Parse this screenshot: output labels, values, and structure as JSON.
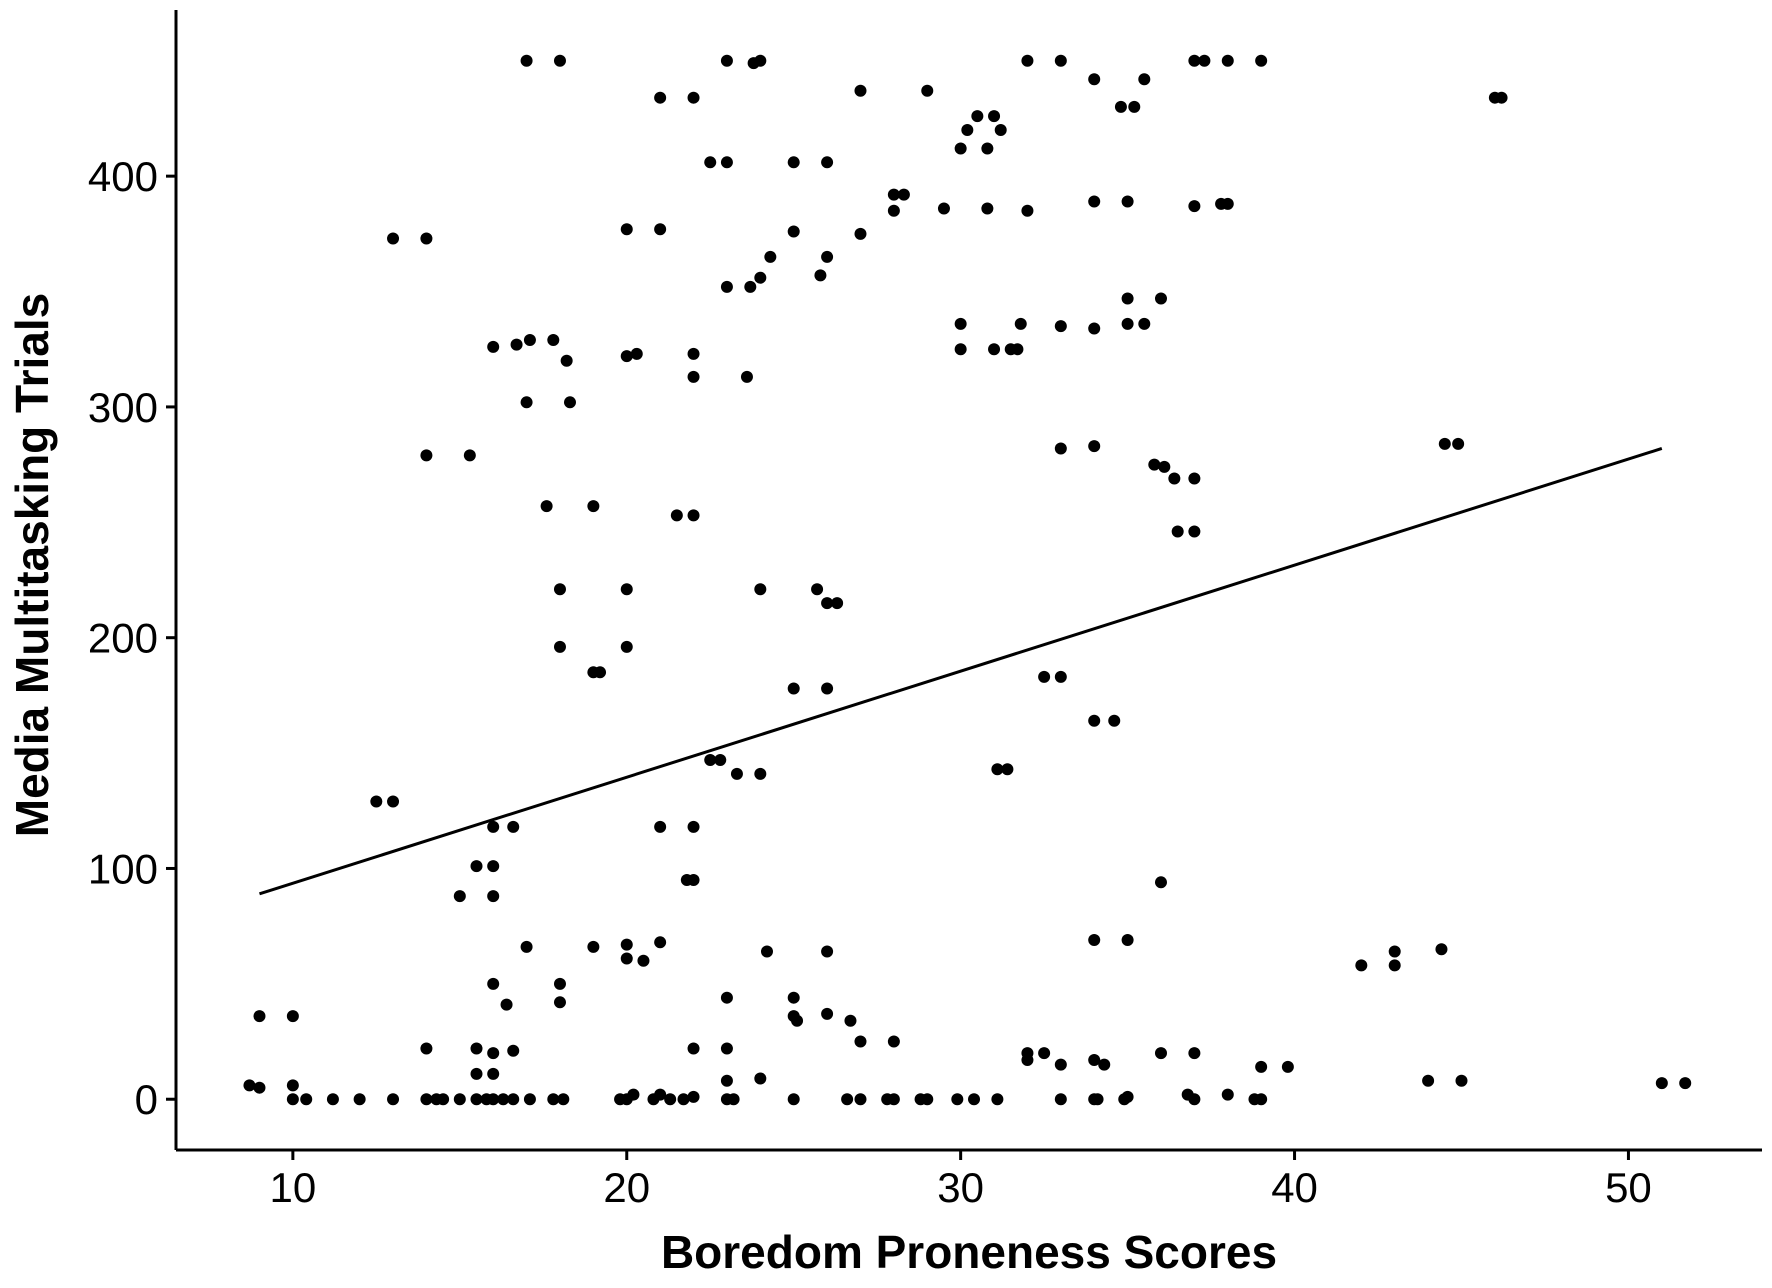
{
  "chart_data": {
    "type": "scatter",
    "title": "",
    "xlabel": "Boredom Proneness Scores",
    "ylabel": "Media Multitasking Trials",
    "xlim": [
      6.5,
      54
    ],
    "ylim": [
      -22,
      472
    ],
    "xticks": [
      10,
      20,
      30,
      40,
      50
    ],
    "yticks": [
      0,
      100,
      200,
      300,
      400
    ],
    "grid": false,
    "legend": "none",
    "trend_line": {
      "x": [
        9,
        51
      ],
      "y": [
        89,
        282
      ]
    },
    "points": [
      [
        17,
        450
      ],
      [
        18,
        450
      ],
      [
        23,
        450
      ],
      [
        24,
        450
      ],
      [
        23.8,
        449
      ],
      [
        32,
        450
      ],
      [
        33,
        450
      ],
      [
        37,
        450
      ],
      [
        37.3,
        450
      ],
      [
        38,
        450
      ],
      [
        39,
        450
      ],
      [
        21,
        434
      ],
      [
        22,
        434
      ],
      [
        27,
        437
      ],
      [
        29,
        437
      ],
      [
        46,
        434
      ],
      [
        46.2,
        434
      ],
      [
        34,
        442
      ],
      [
        35.5,
        442
      ],
      [
        34.8,
        430
      ],
      [
        35.2,
        430
      ],
      [
        30.2,
        420
      ],
      [
        30.5,
        426
      ],
      [
        31,
        426
      ],
      [
        30,
        412
      ],
      [
        30.8,
        412
      ],
      [
        31.2,
        420
      ],
      [
        22.5,
        406
      ],
      [
        23,
        406
      ],
      [
        25,
        406
      ],
      [
        26,
        406
      ],
      [
        28,
        392
      ],
      [
        28.3,
        392
      ],
      [
        28,
        385
      ],
      [
        29.5,
        386
      ],
      [
        30.8,
        386
      ],
      [
        32,
        385
      ],
      [
        34,
        389
      ],
      [
        35,
        389
      ],
      [
        37,
        387
      ],
      [
        37.8,
        388
      ],
      [
        38,
        388
      ],
      [
        13,
        373
      ],
      [
        14,
        373
      ],
      [
        20,
        377
      ],
      [
        21,
        377
      ],
      [
        25,
        376
      ],
      [
        27,
        375
      ],
      [
        26,
        365
      ],
      [
        24.3,
        365
      ],
      [
        23,
        352
      ],
      [
        23.7,
        352
      ],
      [
        24,
        356
      ],
      [
        25.8,
        357
      ],
      [
        35,
        347
      ],
      [
        36,
        347
      ],
      [
        30,
        336
      ],
      [
        31.8,
        336
      ],
      [
        33,
        335
      ],
      [
        34,
        334
      ],
      [
        35,
        336
      ],
      [
        35.5,
        336
      ],
      [
        16,
        326
      ],
      [
        16.7,
        327
      ],
      [
        17.1,
        329
      ],
      [
        17.8,
        329
      ],
      [
        18.2,
        320
      ],
      [
        20,
        322
      ],
      [
        20.3,
        323
      ],
      [
        22,
        323
      ],
      [
        22,
        313
      ],
      [
        23.6,
        313
      ],
      [
        30,
        325
      ],
      [
        31,
        325
      ],
      [
        31.5,
        325
      ],
      [
        31.7,
        325
      ],
      [
        17,
        302
      ],
      [
        18.3,
        302
      ],
      [
        14,
        279
      ],
      [
        15.3,
        279
      ],
      [
        33,
        282
      ],
      [
        34,
        283
      ],
      [
        35.8,
        275
      ],
      [
        36.1,
        274
      ],
      [
        36.4,
        269
      ],
      [
        37,
        269
      ],
      [
        44.5,
        284
      ],
      [
        44.9,
        284
      ],
      [
        17.6,
        257
      ],
      [
        19,
        257
      ],
      [
        21.5,
        253
      ],
      [
        22,
        253
      ],
      [
        36.5,
        246
      ],
      [
        37,
        246
      ],
      [
        18,
        221
      ],
      [
        20,
        221
      ],
      [
        24,
        221
      ],
      [
        25.7,
        221
      ],
      [
        26,
        215
      ],
      [
        26.3,
        215
      ],
      [
        18,
        196
      ],
      [
        20,
        196
      ],
      [
        19,
        185
      ],
      [
        19.2,
        185
      ],
      [
        25,
        178
      ],
      [
        26,
        178
      ],
      [
        32.5,
        183
      ],
      [
        33,
        183
      ],
      [
        22.5,
        147
      ],
      [
        22.8,
        147
      ],
      [
        23.3,
        141
      ],
      [
        24,
        141
      ],
      [
        34,
        164
      ],
      [
        34.6,
        164
      ],
      [
        31.1,
        143
      ],
      [
        31.4,
        143
      ],
      [
        12.5,
        129
      ],
      [
        13,
        129
      ],
      [
        16,
        118
      ],
      [
        16.6,
        118
      ],
      [
        21,
        118
      ],
      [
        22,
        118
      ],
      [
        21.8,
        95
      ],
      [
        22,
        95
      ],
      [
        15.5,
        101
      ],
      [
        16,
        101
      ],
      [
        15,
        88
      ],
      [
        16,
        88
      ],
      [
        36,
        94
      ],
      [
        17,
        66
      ],
      [
        19,
        66
      ],
      [
        20,
        67
      ],
      [
        20,
        61
      ],
      [
        20.5,
        60
      ],
      [
        21,
        68
      ],
      [
        24.2,
        64
      ],
      [
        26,
        64
      ],
      [
        34,
        69
      ],
      [
        35,
        69
      ],
      [
        42,
        58
      ],
      [
        43,
        64
      ],
      [
        43,
        58
      ],
      [
        44.4,
        65
      ],
      [
        16,
        50
      ],
      [
        18,
        50
      ],
      [
        16.4,
        41
      ],
      [
        18,
        42
      ],
      [
        23,
        44
      ],
      [
        25,
        44
      ],
      [
        25,
        36
      ],
      [
        25.1,
        34
      ],
      [
        26,
        37
      ],
      [
        26.7,
        34
      ],
      [
        27,
        25
      ],
      [
        28,
        25
      ],
      [
        9,
        36
      ],
      [
        10,
        36
      ],
      [
        14,
        22
      ],
      [
        15.5,
        22
      ],
      [
        16,
        20
      ],
      [
        16.6,
        21
      ],
      [
        22,
        22
      ],
      [
        23,
        22
      ],
      [
        32,
        20
      ],
      [
        32.5,
        20
      ],
      [
        32,
        17
      ],
      [
        33,
        15
      ],
      [
        34,
        17
      ],
      [
        34.3,
        15
      ],
      [
        36,
        20
      ],
      [
        37,
        20
      ],
      [
        39,
        14
      ],
      [
        39.8,
        14
      ],
      [
        15.5,
        11
      ],
      [
        16,
        11
      ],
      [
        23,
        8
      ],
      [
        24,
        9
      ],
      [
        44,
        8
      ],
      [
        45,
        8
      ],
      [
        51,
        7
      ],
      [
        51.7,
        7
      ],
      [
        8.7,
        6
      ],
      [
        9,
        5
      ],
      [
        10,
        6
      ],
      [
        10,
        0
      ],
      [
        10.4,
        0
      ],
      [
        11.2,
        0
      ],
      [
        12,
        0
      ],
      [
        13,
        0
      ],
      [
        14,
        0
      ],
      [
        14.3,
        0
      ],
      [
        14.5,
        0
      ],
      [
        15,
        0
      ],
      [
        15.5,
        0
      ],
      [
        15.8,
        0
      ],
      [
        16,
        0
      ],
      [
        16.3,
        0
      ],
      [
        16.6,
        0
      ],
      [
        17.1,
        0
      ],
      [
        17.8,
        0
      ],
      [
        18.1,
        0
      ],
      [
        19.8,
        0
      ],
      [
        20,
        0
      ],
      [
        20.2,
        2
      ],
      [
        20.8,
        0
      ],
      [
        21,
        2
      ],
      [
        21.3,
        0
      ],
      [
        21.7,
        0
      ],
      [
        22,
        1
      ],
      [
        23,
        0
      ],
      [
        23.2,
        0
      ],
      [
        25,
        0
      ],
      [
        26.6,
        0
      ],
      [
        27,
        0
      ],
      [
        27.8,
        0
      ],
      [
        28,
        0
      ],
      [
        28.8,
        0
      ],
      [
        29,
        0
      ],
      [
        29.9,
        0
      ],
      [
        30.4,
        0
      ],
      [
        31.1,
        0
      ],
      [
        33,
        0
      ],
      [
        34,
        0
      ],
      [
        34.1,
        0
      ],
      [
        34.9,
        0
      ],
      [
        35,
        1
      ],
      [
        36.8,
        2
      ],
      [
        37,
        0
      ],
      [
        38,
        2
      ],
      [
        38.8,
        0
      ],
      [
        39,
        0
      ]
    ]
  }
}
